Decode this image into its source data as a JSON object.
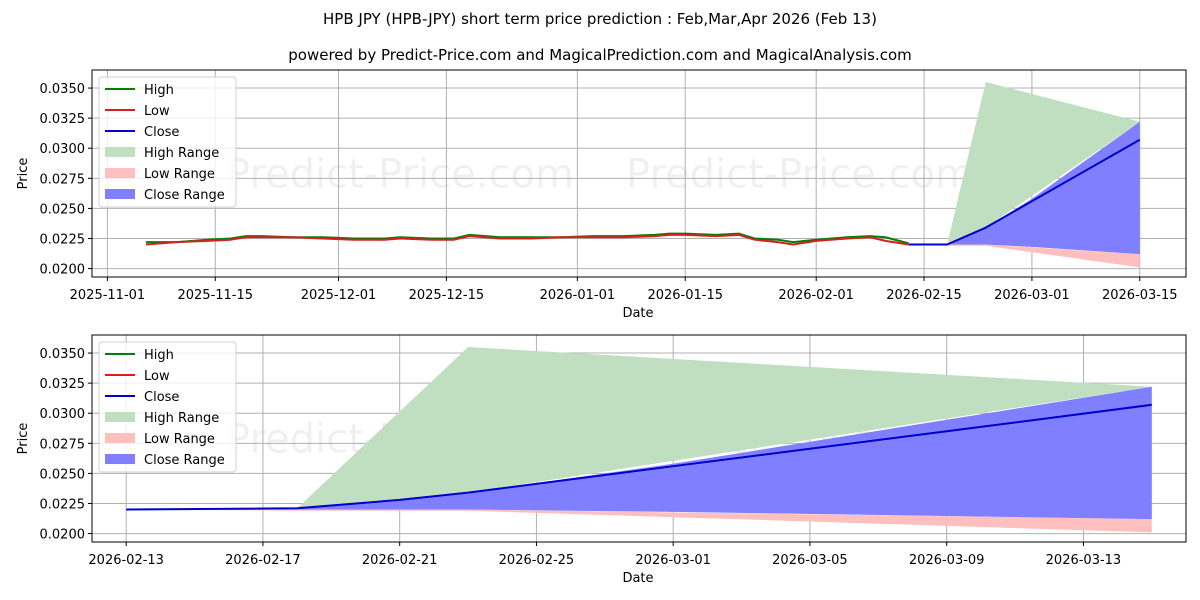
{
  "header": {
    "title": "HPB JPY (HPB-JPY) short term price prediction : Feb,Mar,Apr 2026 (Feb 13)",
    "subtitle": "powered by Predict-Price.com and MagicalPrediction.com and MagicalAnalysis.com"
  },
  "watermark": "Predict-Price.com",
  "colors": {
    "high": "#008000",
    "low": "#d62020",
    "close": "#0000cc",
    "high_range": "#c0dfc0",
    "low_range": "#ffbfbf",
    "close_range": "#7f7fff"
  },
  "legend": [
    "High",
    "Low",
    "Close",
    "High Range",
    "Low Range",
    "Close Range"
  ],
  "chart_data": [
    {
      "type": "line",
      "title": "Historical and predicted price (overview)",
      "xlabel": "Date",
      "ylabel": "Price",
      "ylim": [
        0.0193,
        0.0365
      ],
      "xlim": [
        "2025-10-30",
        "2026-03-21"
      ],
      "yticks": [
        "0.0200",
        "0.0225",
        "0.0250",
        "0.0275",
        "0.0300",
        "0.0325",
        "0.0350"
      ],
      "xticks": [
        "2025-11-01",
        "2025-11-15",
        "2025-12-01",
        "2025-12-15",
        "2026-01-01",
        "2026-01-15",
        "2026-02-01",
        "2026-02-15",
        "2026-03-01",
        "2026-03-15"
      ],
      "grid": true,
      "legend_position": "upper left",
      "series": [
        {
          "name": "High",
          "x": [
            "2025-11-06",
            "2025-11-10",
            "2025-11-14",
            "2025-11-17",
            "2025-11-19",
            "2025-11-21",
            "2025-11-25",
            "2025-11-29",
            "2025-12-03",
            "2025-12-07",
            "2025-12-09",
            "2025-12-13",
            "2025-12-16",
            "2025-12-18",
            "2025-12-22",
            "2025-12-26",
            "2025-12-30",
            "2026-01-03",
            "2026-01-07",
            "2026-01-11",
            "2026-01-13",
            "2026-01-15",
            "2026-01-19",
            "2026-01-22",
            "2026-01-24",
            "2026-01-27",
            "2026-01-29",
            "2026-02-01",
            "2026-02-05",
            "2026-02-08",
            "2026-02-10",
            "2026-02-13"
          ],
          "values": [
            0.0222,
            0.0222,
            0.0224,
            0.0225,
            0.0227,
            0.0227,
            0.0226,
            0.0226,
            0.0225,
            0.0225,
            0.0226,
            0.0225,
            0.0225,
            0.0228,
            0.0226,
            0.0226,
            0.0226,
            0.0227,
            0.0227,
            0.0228,
            0.0229,
            0.0229,
            0.0228,
            0.0229,
            0.0225,
            0.0224,
            0.0222,
            0.0224,
            0.0226,
            0.0227,
            0.0226,
            0.0221
          ]
        },
        {
          "name": "Low",
          "x": [
            "2025-11-06",
            "2025-11-10",
            "2025-11-14",
            "2025-11-17",
            "2025-11-19",
            "2025-11-21",
            "2025-11-25",
            "2025-11-29",
            "2025-12-03",
            "2025-12-07",
            "2025-12-09",
            "2025-12-13",
            "2025-12-16",
            "2025-12-18",
            "2025-12-22",
            "2025-12-26",
            "2025-12-30",
            "2026-01-03",
            "2026-01-07",
            "2026-01-11",
            "2026-01-13",
            "2026-01-15",
            "2026-01-19",
            "2026-01-22",
            "2026-01-24",
            "2026-01-27",
            "2026-01-29",
            "2026-02-01",
            "2026-02-05",
            "2026-02-08",
            "2026-02-10",
            "2026-02-13"
          ],
          "values": [
            0.022,
            0.0222,
            0.0223,
            0.0224,
            0.0226,
            0.0226,
            0.0226,
            0.0225,
            0.0224,
            0.0224,
            0.0225,
            0.0224,
            0.0224,
            0.0227,
            0.0225,
            0.0225,
            0.0226,
            0.0226,
            0.0226,
            0.0227,
            0.0228,
            0.0228,
            0.0227,
            0.0228,
            0.0224,
            0.0222,
            0.022,
            0.0223,
            0.0225,
            0.0226,
            0.0223,
            0.022
          ]
        },
        {
          "name": "Close",
          "x": [
            "2026-02-13",
            "2026-02-18",
            "2026-02-23",
            "2026-03-01",
            "2026-03-15"
          ],
          "values": [
            0.022,
            0.022,
            0.0234,
            0.0256,
            0.0307
          ]
        },
        {
          "name": "High Range",
          "x": [
            "2026-02-18",
            "2026-02-23",
            "2026-03-15"
          ],
          "upper": [
            0.022,
            0.0355,
            0.0322
          ],
          "lower": [
            0.022,
            0.0234,
            0.0322
          ]
        },
        {
          "name": "Low Range",
          "x": [
            "2026-02-13",
            "2026-02-18",
            "2026-02-23",
            "2026-03-15"
          ],
          "upper": [
            0.022,
            0.022,
            0.022,
            0.0212
          ],
          "lower": [
            0.022,
            0.0219,
            0.0219,
            0.0201
          ]
        },
        {
          "name": "Close Range",
          "x": [
            "2026-02-13",
            "2026-02-18",
            "2026-02-23",
            "2026-03-01",
            "2026-03-15"
          ],
          "upper": [
            0.022,
            0.022,
            0.0234,
            0.0258,
            0.0322
          ],
          "lower": [
            0.022,
            0.022,
            0.022,
            0.0218,
            0.0212
          ]
        }
      ]
    },
    {
      "type": "line",
      "title": "Predicted price (zoomed)",
      "xlabel": "Date",
      "ylabel": "Price",
      "ylim": [
        0.0193,
        0.0365
      ],
      "xlim": [
        "2026-02-12",
        "2026-03-16"
      ],
      "yticks": [
        "0.0200",
        "0.0225",
        "0.0250",
        "0.0275",
        "0.0300",
        "0.0325",
        "0.0350"
      ],
      "xticks": [
        "2026-02-13",
        "2026-02-17",
        "2026-02-21",
        "2026-02-25",
        "2026-03-01",
        "2026-03-05",
        "2026-03-09",
        "2026-03-13"
      ],
      "grid": true,
      "legend_position": "upper left",
      "series": [
        {
          "name": "Close",
          "x": [
            "2026-02-13",
            "2026-02-18",
            "2026-02-21",
            "2026-02-23",
            "2026-03-01",
            "2026-03-09",
            "2026-03-15"
          ],
          "values": [
            0.022,
            0.0221,
            0.0228,
            0.0234,
            0.0256,
            0.0285,
            0.0307
          ]
        },
        {
          "name": "High Range",
          "x": [
            "2026-02-18",
            "2026-02-23",
            "2026-03-15"
          ],
          "upper": [
            0.0221,
            0.0355,
            0.0322
          ],
          "lower": [
            0.0221,
            0.0234,
            0.0322
          ]
        },
        {
          "name": "Low Range",
          "x": [
            "2026-02-13",
            "2026-02-18",
            "2026-02-23",
            "2026-03-15"
          ],
          "upper": [
            0.022,
            0.022,
            0.022,
            0.0212
          ],
          "lower": [
            0.022,
            0.0219,
            0.0219,
            0.0201
          ]
        },
        {
          "name": "Close Range",
          "x": [
            "2026-02-13",
            "2026-02-18",
            "2026-02-23",
            "2026-03-01",
            "2026-03-15"
          ],
          "upper": [
            0.022,
            0.0221,
            0.0234,
            0.0258,
            0.0322
          ],
          "lower": [
            0.022,
            0.022,
            0.022,
            0.0218,
            0.0212
          ]
        }
      ]
    }
  ]
}
